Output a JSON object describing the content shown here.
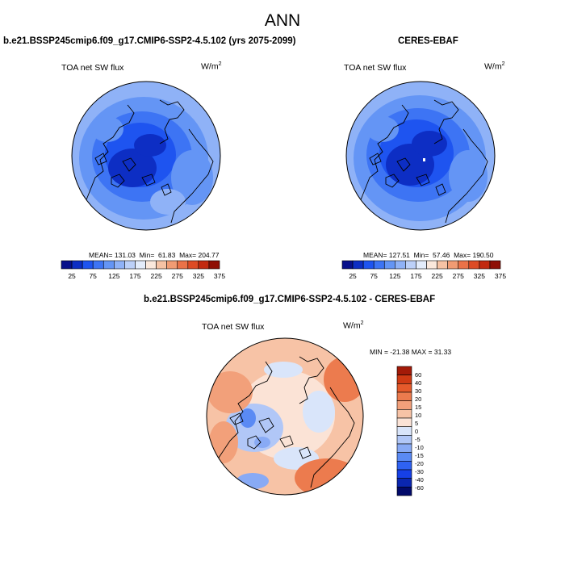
{
  "title": "ANN",
  "colors": {
    "seq": [
      "#08108a",
      "#0d2ec4",
      "#1e54f0",
      "#3d74f4",
      "#6495f5",
      "#8fb2f7",
      "#bcd0f8",
      "#e3ecfb",
      "#fae8dc",
      "#f6c2a4",
      "#f19b73",
      "#eb7248",
      "#dd4b25",
      "#c22a10",
      "#8f0f05"
    ],
    "diff": [
      "#020a6a",
      "#0a26b0",
      "#1640e6",
      "#2f62f2",
      "#5a8af4",
      "#88aaf5",
      "#b1c7f7",
      "#d9e5fa",
      "#fbe3d6",
      "#f7c3a6",
      "#f2a07a",
      "#ec7b4e",
      "#e55a2b",
      "#cf3a14",
      "#a31a08"
    ],
    "coast": "#000000"
  },
  "chart_data": [
    {
      "id": "model",
      "type": "contour-map",
      "projection": "north-polar-stereographic",
      "title": "b.e21.BSSP245cmip6.f09_g17.CMIP6-SSP2-4.5.102 (yrs 2075-2099)",
      "variable": "TOA net SW flux",
      "units_base": "W/m",
      "units_exp": "2",
      "mean_label": "MEAN=",
      "mean": "131.03",
      "min_label": "Min=",
      "min": "61.83",
      "max_label": "Max=",
      "max": "204.77",
      "colorbar": {
        "levels": [
          25,
          50,
          75,
          100,
          125,
          150,
          175,
          200,
          225,
          250,
          275,
          300,
          325,
          350,
          375
        ],
        "tick_labels": [
          "25",
          "75",
          "125",
          "175",
          "225",
          "275",
          "325",
          "375"
        ]
      }
    },
    {
      "id": "obs",
      "type": "contour-map",
      "projection": "north-polar-stereographic",
      "title": "CERES-EBAF",
      "variable": "TOA net SW flux",
      "units_base": "W/m",
      "units_exp": "2",
      "mean_label": "MEAN=",
      "mean": "127.51",
      "min_label": "Min=",
      "min": "57.46",
      "max_label": "Max=",
      "max": "190.50",
      "colorbar": {
        "levels": [
          25,
          50,
          75,
          100,
          125,
          150,
          175,
          200,
          225,
          250,
          275,
          300,
          325,
          350,
          375
        ],
        "tick_labels": [
          "25",
          "75",
          "125",
          "175",
          "225",
          "275",
          "325",
          "375"
        ]
      }
    },
    {
      "id": "diff",
      "type": "contour-map",
      "projection": "north-polar-stereographic",
      "title": "b.e21.BSSP245cmip6.f09_g17.CMIP6-SSP2-4.5.102 - CERES-EBAF",
      "variable": "TOA net SW flux",
      "units_base": "W/m",
      "units_exp": "2",
      "minmax_text": "MIN = -21.38 MAX =  31.33",
      "min": -21.38,
      "max": 31.33,
      "colorbar": {
        "levels": [
          -60,
          -40,
          -30,
          -20,
          -15,
          -10,
          -5,
          0,
          5,
          10,
          15,
          20,
          30,
          40,
          60
        ],
        "tick_labels": [
          "60",
          "40",
          "30",
          "20",
          "15",
          "10",
          "5",
          "0",
          "-5",
          "-10",
          "-15",
          "-20",
          "-30",
          "-40",
          "-60"
        ]
      }
    }
  ]
}
